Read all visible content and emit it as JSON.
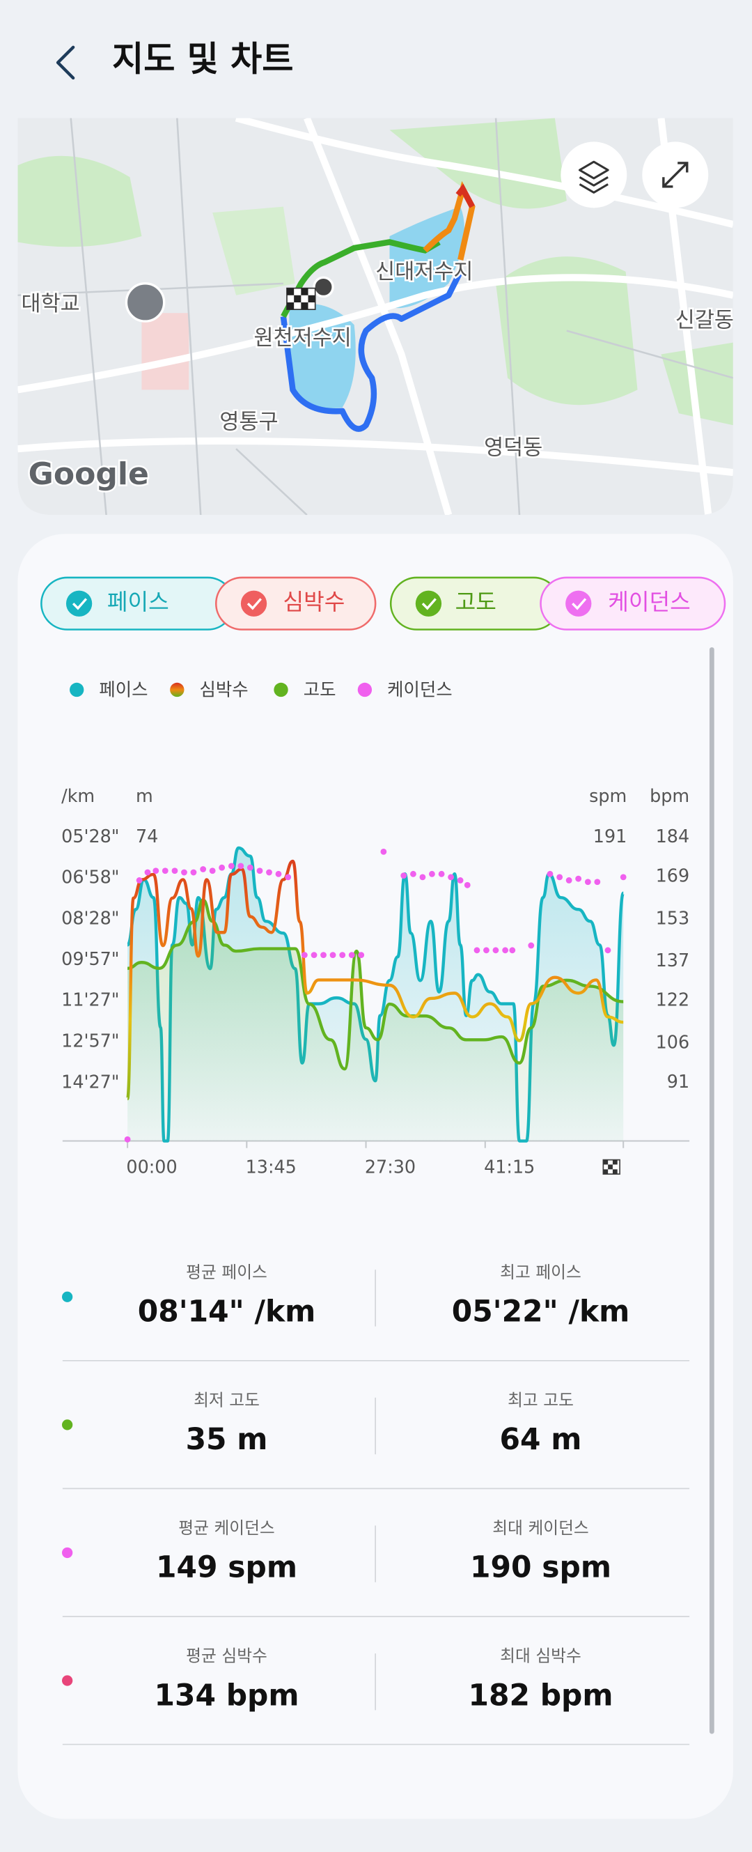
{
  "header": {
    "title": "지도 및 차트"
  },
  "map": {
    "labels": [
      "대학교",
      "신대저수지",
      "원천저수지",
      "영통구",
      "영덕동",
      "신갈동"
    ],
    "attribution": "Google"
  },
  "chips": [
    "페이스",
    "심박수",
    "고도",
    "케이던스"
  ],
  "chart_data": {
    "type": "line",
    "xlim": [
      0,
      3431
    ],
    "xticks": [
      {
        "value": 0,
        "label": "00:00"
      },
      {
        "value": 825,
        "label": "13:45"
      },
      {
        "value": 1650,
        "label": "27:30"
      },
      {
        "value": 2475,
        "label": "41:15"
      }
    ],
    "axes": [
      {
        "label": "/km",
        "ylim": [
          994,
          328
        ],
        "yticks": [
          {
            "value": 328,
            "label": "05'28\""
          },
          {
            "value": 418,
            "label": "06'58\""
          },
          {
            "value": 508,
            "label": "08'28\""
          },
          {
            "value": 597,
            "label": "09'57\""
          },
          {
            "value": 687,
            "label": "11'27\""
          },
          {
            "value": 777,
            "label": "12'57\""
          },
          {
            "value": 867,
            "label": "14'27\""
          }
        ]
      },
      {
        "label": "m",
        "ylim": [
          23,
          74
        ],
        "yticks": [
          74
        ]
      },
      {
        "label": "spm",
        "ylim": [
          0,
          191
        ],
        "yticks": [
          191
        ]
      },
      {
        "label": "bpm",
        "ylim": [
          69,
          184
        ],
        "yticks": [
          184,
          169,
          153,
          137,
          122,
          106,
          91
        ]
      }
    ],
    "series": [
      {
        "name": "페이스",
        "color": "#17b5c2",
        "axis": 0,
        "type": "area",
        "x": [
          0,
          57,
          114,
          180,
          229,
          253,
          278,
          310,
          359,
          408,
          449,
          490,
          572,
          613,
          670,
          719,
          768,
          849,
          898,
          956,
          1078,
          1160,
          1209,
          1258,
          1323,
          1446,
          1568,
          1650,
          1715,
          1748,
          1813,
          1870,
          1920,
          1960,
          2026,
          2099,
          2156,
          2222,
          2263,
          2303,
          2344,
          2385,
          2426,
          2508,
          2589,
          2671,
          2712,
          2761,
          2810,
          2875,
          2916,
          2998,
          3120,
          3202,
          3267,
          3324,
          3365,
          3431
        ],
        "values": [
          564,
          486,
          421,
          460,
          745,
          994,
          994,
          564,
          460,
          473,
          564,
          460,
          616,
          486,
          460,
          408,
          351,
          369,
          460,
          512,
          538,
          616,
          823,
          693,
          693,
          680,
          693,
          771,
          862,
          719,
          642,
          590,
          408,
          538,
          642,
          512,
          667,
          512,
          408,
          564,
          719,
          642,
          629,
          667,
          693,
          693,
          994,
          994,
          693,
          460,
          408,
          460,
          486,
          512,
          564,
          719,
          784,
          450
        ]
      },
      {
        "name": "심박수",
        "color": "#d7301f",
        "axis": 3,
        "type": "line",
        "x": [
          0,
          41,
          98,
          180,
          245,
          310,
          384,
          441,
          490,
          547,
          621,
          670,
          719,
          792,
          849,
          931,
          997,
          1078,
          1144,
          1193,
          1242,
          1323,
          1568,
          1813,
          1977,
          2099,
          2263,
          2385,
          2508,
          2630,
          2712,
          2793,
          2957,
          3120,
          3243,
          3324,
          3431
        ],
        "values": [
          85,
          161,
          168,
          170,
          143,
          161,
          168,
          157,
          139,
          168,
          148,
          148,
          170,
          172,
          154,
          150,
          148,
          168,
          175,
          152,
          125,
          130,
          130,
          128,
          116,
          123,
          125,
          116,
          121,
          116,
          107,
          121,
          131,
          125,
          130,
          116,
          114
        ]
      },
      {
        "name": "고도",
        "color": "#62b320",
        "axis": 1,
        "type": "area",
        "x": [
          0,
          98,
          221,
          343,
          466,
          523,
          588,
          670,
          751,
          915,
          1160,
          1258,
          1405,
          1503,
          1585,
          1650,
          1732,
          1813,
          1936,
          2058,
          2222,
          2344,
          2467,
          2589,
          2712,
          2793,
          2875,
          3038,
          3202,
          3431
        ],
        "values": [
          52.0,
          53.0,
          52.0,
          55.9,
          59.9,
          63.5,
          59.9,
          55.9,
          54.9,
          55.3,
          55.3,
          46.0,
          40.0,
          35.1,
          54.9,
          42.0,
          40.0,
          46.0,
          44.0,
          44.0,
          42.0,
          40.0,
          40.0,
          40.5,
          36.1,
          42.0,
          49.0,
          50.0,
          49.0,
          46.4
        ]
      },
      {
        "name": "케이던스",
        "color": "#f060ee",
        "axis": 2,
        "type": "scatter",
        "x": [
          0,
          82,
          139,
          196,
          261,
          327,
          392,
          457,
          523,
          588,
          653,
          719,
          784,
          849,
          915,
          980,
          1045,
          1111,
          1225,
          1291,
          1356,
          1421,
          1487,
          1552,
          1617,
          1772,
          1911,
          1977,
          2042,
          2107,
          2173,
          2238,
          2303,
          2352,
          2418,
          2483,
          2548,
          2614,
          2663,
          2793,
          2924,
          2990,
          3055,
          3120,
          3186,
          3251,
          3324,
          3431
        ],
        "values": [
          1,
          164,
          169,
          170,
          170,
          170,
          169,
          169,
          171,
          170,
          172,
          173,
          173,
          172,
          170,
          169,
          168,
          166,
          117,
          117,
          117,
          117,
          117,
          117,
          117,
          182,
          167,
          168,
          166,
          168,
          168,
          166,
          164,
          161,
          120,
          120,
          120,
          120,
          120,
          123,
          168,
          166,
          164,
          165,
          163,
          163,
          120,
          166
        ]
      }
    ]
  },
  "stats": [
    {
      "color": "#17b5c2",
      "left": {
        "label": "평균 페이스",
        "value": "08'14\" /km"
      },
      "right": {
        "label": "최고 페이스",
        "value": "05'22\" /km"
      }
    },
    {
      "color": "#62b320",
      "left": {
        "label": "최저 고도",
        "value": "35 m"
      },
      "right": {
        "label": "최고 고도",
        "value": "64 m"
      }
    },
    {
      "color": "#f060ee",
      "left": {
        "label": "평균 케이던스",
        "value": "149 spm"
      },
      "right": {
        "label": "최대 케이던스",
        "value": "190 spm"
      }
    },
    {
      "color": "#e8457a",
      "left": {
        "label": "평균 심박수",
        "value": "134 bpm"
      },
      "right": {
        "label": "최대 심박수",
        "value": "182 bpm"
      }
    }
  ]
}
